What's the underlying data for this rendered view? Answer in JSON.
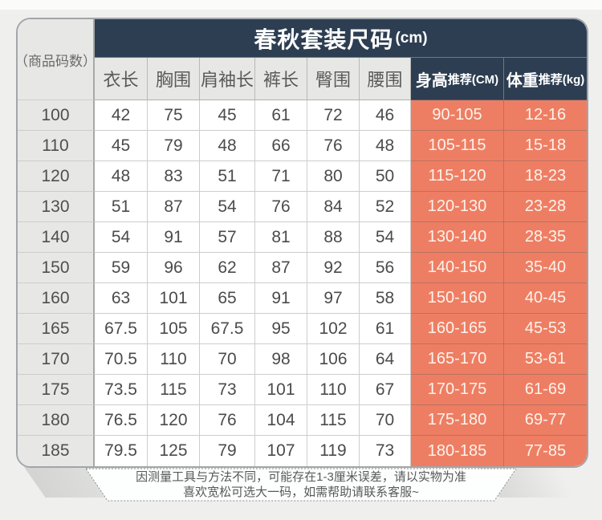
{
  "colors": {
    "navy": "#2d3e52",
    "salmon": "#ee7e63",
    "cellgray": "#e7e7e5",
    "frame": "#a2a6a9"
  },
  "table": {
    "title": "春秋套装尺码",
    "title_unit": "(cm)",
    "corner_label": "（商品码数）",
    "measure_headers": [
      "衣长",
      "胸围",
      "肩袖长",
      "裤长",
      "臀围",
      "腰围"
    ],
    "height_header": {
      "main": "身高",
      "sub": "推荐(CM)"
    },
    "weight_header": {
      "main": "体重",
      "sub": "推荐(kg)"
    },
    "rows": [
      {
        "size": "100",
        "values": [
          "42",
          "75",
          "45",
          "61",
          "72",
          "46"
        ],
        "height": "90-105",
        "weight": "12-16"
      },
      {
        "size": "110",
        "values": [
          "45",
          "79",
          "48",
          "66",
          "76",
          "48"
        ],
        "height": "105-115",
        "weight": "15-18"
      },
      {
        "size": "120",
        "values": [
          "48",
          "83",
          "51",
          "71",
          "80",
          "50"
        ],
        "height": "115-120",
        "weight": "18-23"
      },
      {
        "size": "130",
        "values": [
          "51",
          "87",
          "54",
          "76",
          "84",
          "52"
        ],
        "height": "120-130",
        "weight": "23-28"
      },
      {
        "size": "140",
        "values": [
          "54",
          "91",
          "57",
          "81",
          "88",
          "54"
        ],
        "height": "130-140",
        "weight": "28-35"
      },
      {
        "size": "150",
        "values": [
          "59",
          "96",
          "62",
          "87",
          "92",
          "56"
        ],
        "height": "140-150",
        "weight": "35-40"
      },
      {
        "size": "160",
        "values": [
          "63",
          "101",
          "65",
          "91",
          "97",
          "58"
        ],
        "height": "150-160",
        "weight": "40-45"
      },
      {
        "size": "165",
        "values": [
          "67.5",
          "105",
          "67.5",
          "95",
          "102",
          "61"
        ],
        "height": "160-165",
        "weight": "45-53"
      },
      {
        "size": "170",
        "values": [
          "70.5",
          "110",
          "70",
          "98",
          "106",
          "64"
        ],
        "height": "165-170",
        "weight": "53-61"
      },
      {
        "size": "175",
        "values": [
          "73.5",
          "115",
          "73",
          "101",
          "110",
          "67"
        ],
        "height": "170-175",
        "weight": "61-69"
      },
      {
        "size": "180",
        "values": [
          "76.5",
          "120",
          "76",
          "104",
          "115",
          "70"
        ],
        "height": "175-180",
        "weight": "69-77"
      },
      {
        "size": "185",
        "values": [
          "79.5",
          "125",
          "79",
          "107",
          "119",
          "73"
        ],
        "height": "180-185",
        "weight": "77-85"
      }
    ]
  },
  "footer": {
    "line1": "因测量工具与方法不同，可能存在1-3厘米误差，请以实物为准",
    "line2": "喜欢宽松可选大一码，如需帮助请联系客服~"
  },
  "chart_data": {
    "type": "table",
    "title": "春秋套装尺码(cm)",
    "columns": [
      "商品码数",
      "衣长",
      "胸围",
      "肩袖长",
      "裤长",
      "臀围",
      "腰围",
      "身高推荐(CM)",
      "体重推荐(kg)"
    ],
    "rows": [
      [
        "100",
        42,
        75,
        45,
        61,
        72,
        46,
        "90-105",
        "12-16"
      ],
      [
        "110",
        45,
        79,
        48,
        66,
        76,
        48,
        "105-115",
        "15-18"
      ],
      [
        "120",
        48,
        83,
        51,
        71,
        80,
        50,
        "115-120",
        "18-23"
      ],
      [
        "130",
        51,
        87,
        54,
        76,
        84,
        52,
        "120-130",
        "23-28"
      ],
      [
        "140",
        54,
        91,
        57,
        81,
        88,
        54,
        "130-140",
        "28-35"
      ],
      [
        "150",
        59,
        96,
        62,
        87,
        92,
        56,
        "140-150",
        "35-40"
      ],
      [
        "160",
        63,
        101,
        65,
        91,
        97,
        58,
        "150-160",
        "40-45"
      ],
      [
        "165",
        67.5,
        105,
        67.5,
        95,
        102,
        61,
        "160-165",
        "45-53"
      ],
      [
        "170",
        70.5,
        110,
        70,
        98,
        106,
        64,
        "165-170",
        "53-61"
      ],
      [
        "175",
        73.5,
        115,
        73,
        101,
        110,
        67,
        "170-175",
        "61-69"
      ],
      [
        "180",
        76.5,
        120,
        76,
        104,
        115,
        70,
        "175-180",
        "69-77"
      ],
      [
        "185",
        79.5,
        125,
        79,
        107,
        119,
        73,
        "180-185",
        "77-85"
      ]
    ]
  }
}
